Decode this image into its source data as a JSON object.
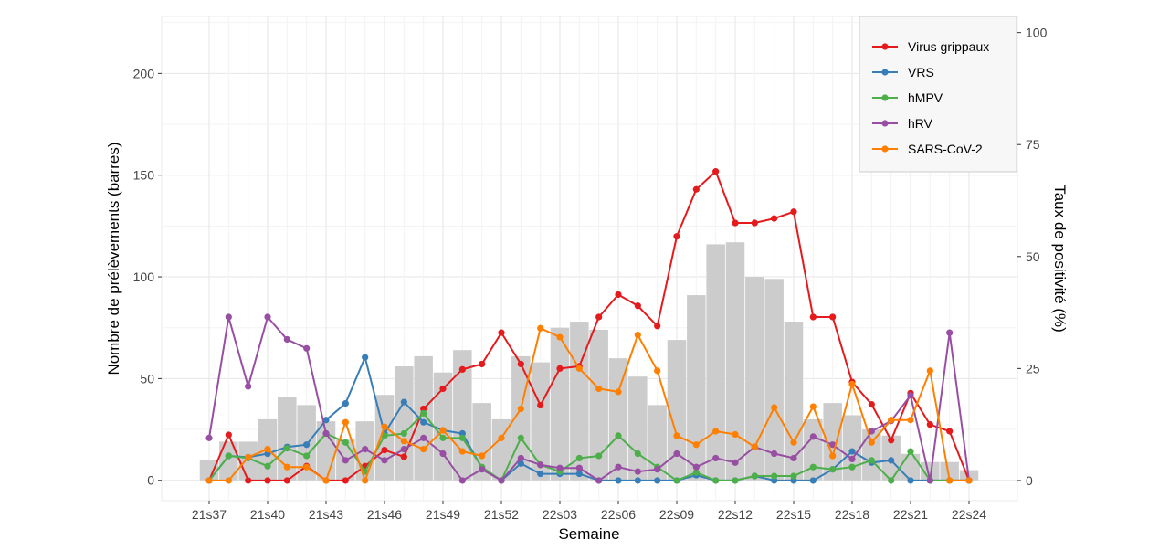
{
  "chart_data": {
    "type": "bar+line",
    "title": "",
    "xlabel": "Semaine",
    "ylabel_left": "Nombre de prélèvements (barres)",
    "ylabel_right": "Taux de positivité (%)",
    "ylim_left": [
      -10,
      228
    ],
    "ylim_right": [
      -4.5,
      103.6
    ],
    "yticks_left": [
      0,
      50,
      100,
      150,
      200
    ],
    "yticks_right": [
      0,
      25,
      50,
      75,
      100
    ],
    "grid": true,
    "legend_position": "top-right",
    "weeks": [
      "21s37",
      "21s38",
      "21s39",
      "21s40",
      "21s41",
      "21s42",
      "21s43",
      "21s44",
      "21s45",
      "21s46",
      "21s47",
      "21s48",
      "21s49",
      "21s50",
      "21s51",
      "21s52",
      "22s01",
      "22s02",
      "22s03",
      "22s04",
      "22s05",
      "22s06",
      "22s07",
      "22s08",
      "22s09",
      "22s10",
      "22s11",
      "22s12",
      "22s13",
      "22s14",
      "22s15",
      "22s16",
      "22s17",
      "22s18",
      "22s19",
      "22s20",
      "22s21",
      "22s22",
      "22s23",
      "22s24"
    ],
    "x_tick_labels": [
      "21s37",
      "21s40",
      "21s43",
      "21s46",
      "21s49",
      "21s52",
      "22s03",
      "22s06",
      "22s09",
      "22s12",
      "22s15",
      "22s18",
      "22s21",
      "22s24"
    ],
    "x_tick_indices": [
      0,
      3,
      6,
      9,
      12,
      15,
      18,
      21,
      24,
      27,
      30,
      33,
      36,
      39
    ],
    "bars": {
      "name": "Nombre de prélèvements",
      "color": "#cccccc",
      "values": [
        10,
        19,
        19,
        30,
        41,
        37,
        29,
        20,
        29,
        42,
        56,
        61,
        53,
        64,
        38,
        30,
        61,
        58,
        75,
        78,
        74,
        60,
        51,
        37,
        69,
        91,
        116,
        117,
        100,
        99,
        78,
        30,
        38,
        32,
        25,
        22,
        13,
        9,
        9,
        5
      ]
    },
    "series": [
      {
        "name": "Virus grippaux",
        "color": "#e41a1c",
        "values": [
          0,
          10.2,
          0,
          0,
          0,
          3.2,
          0,
          0,
          3.2,
          6.8,
          5.3,
          16,
          20.5,
          24.8,
          26,
          33,
          26,
          16.8,
          25,
          25.5,
          36.5,
          41.5,
          39,
          34.5,
          54.5,
          65,
          69,
          57.5,
          57.5,
          58.5,
          60,
          36.5,
          36.5,
          22,
          17,
          9,
          19.5,
          12.5,
          11,
          0
        ]
      },
      {
        "name": "VRS",
        "color": "#377eb8",
        "values": [
          0,
          5.5,
          5.2,
          6,
          7.5,
          8,
          13.5,
          17.2,
          27.5,
          10.5,
          17.5,
          13,
          11.2,
          10.5,
          2.8,
          0,
          3.8,
          1.5,
          1.5,
          1.5,
          0,
          0,
          0,
          0,
          0,
          1.2,
          0,
          0,
          1,
          0,
          0,
          0,
          2.5,
          6.5,
          4,
          4.5,
          0,
          0,
          0,
          0
        ]
      },
      {
        "name": "hMPV",
        "color": "#4daf4a",
        "values": [
          0,
          5.5,
          5,
          3.2,
          7.2,
          5.5,
          10.5,
          8.5,
          2,
          10,
          10.5,
          15,
          9.5,
          9.5,
          3,
          0,
          9.5,
          3.5,
          2,
          5,
          5.5,
          10,
          6,
          3,
          0,
          1.8,
          0,
          0,
          1,
          1,
          1,
          3,
          2.5,
          3,
          4.5,
          0,
          6.5,
          0,
          0,
          0
        ]
      },
      {
        "name": "hRV",
        "color": "#984ea3",
        "values": [
          9.5,
          36.5,
          21,
          36.5,
          31.5,
          29.5,
          10.5,
          4.5,
          7,
          4.5,
          7,
          9.5,
          6,
          0,
          2.5,
          0,
          5,
          3.5,
          2.8,
          2.8,
          0,
          3,
          2,
          2.5,
          6,
          3,
          5,
          4,
          7.5,
          6,
          5,
          9.8,
          8,
          4.8,
          11,
          13.3,
          19,
          0,
          33,
          0
        ]
      },
      {
        "name": "SARS-CoV-2",
        "color": "#ff7f00",
        "values": [
          0,
          0,
          5.2,
          7,
          3,
          3,
          0,
          13,
          0,
          12,
          8.8,
          7,
          11.2,
          6.5,
          5.5,
          9.5,
          16,
          34,
          32,
          25,
          20.5,
          19.8,
          32.5,
          24.5,
          10,
          8,
          11,
          10.3,
          7.5,
          16.3,
          8.5,
          16.5,
          5.5,
          21.5,
          8.5,
          13.5,
          13.5,
          24.5,
          0,
          0
        ]
      }
    ]
  }
}
